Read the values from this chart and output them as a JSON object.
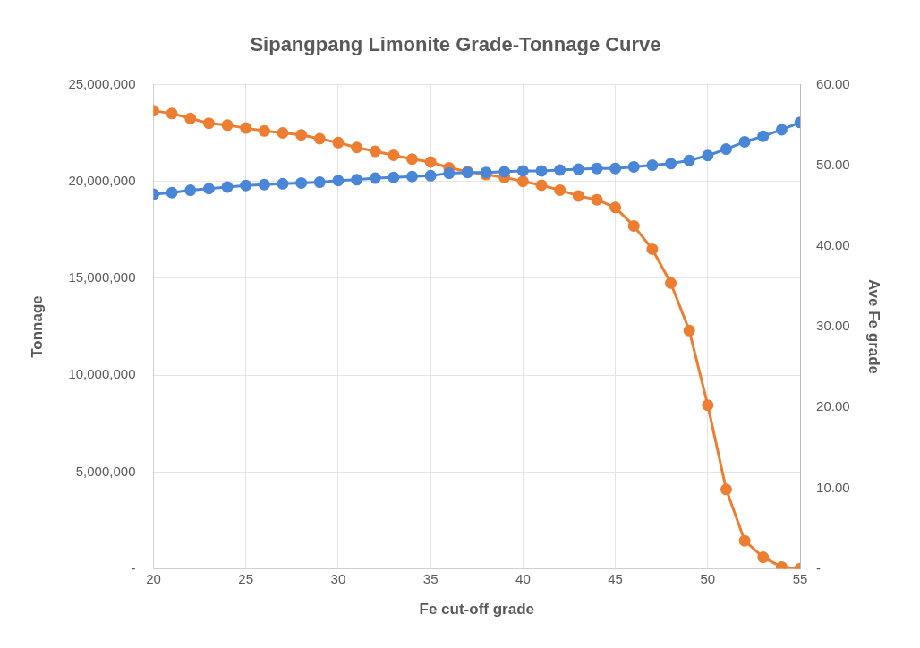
{
  "chart_data": {
    "type": "line",
    "title": "Sipangpang Limonite Grade-Tonnage Curve",
    "xlabel": "Fe cut-off grade",
    "ylabel": "Tonnage",
    "y2label": "Ave Fe grade",
    "x": [
      20,
      21,
      22,
      23,
      24,
      25,
      26,
      27,
      28,
      29,
      30,
      31,
      32,
      33,
      34,
      35,
      36,
      37,
      38,
      39,
      40,
      41,
      42,
      43,
      44,
      45,
      46,
      47,
      48,
      49,
      50,
      51,
      52,
      53,
      54,
      55
    ],
    "series": [
      {
        "color": "#ed7d31",
        "values": [
          23650000,
          23500000,
          23250000,
          23000000,
          22900000,
          22750000,
          22600000,
          22500000,
          22400000,
          22200000,
          22000000,
          21750000,
          21550000,
          21350000,
          21150000,
          21000000,
          20700000,
          20500000,
          20350000,
          20200000,
          20000000,
          19800000,
          19550000,
          19250000,
          19050000,
          18650000,
          17700000,
          16500000,
          14750000,
          12300000,
          8450000,
          4100000,
          1450000,
          600000,
          100000,
          20000
        ]
      },
      {
        "color": "#4a86d8",
        "axis": "y2",
        "values": [
          46.4,
          46.6,
          46.9,
          47.1,
          47.3,
          47.5,
          47.6,
          47.7,
          47.8,
          47.9,
          48.1,
          48.2,
          48.4,
          48.5,
          48.6,
          48.7,
          49.0,
          49.1,
          49.1,
          49.2,
          49.3,
          49.3,
          49.4,
          49.5,
          49.6,
          49.6,
          49.8,
          50.0,
          50.2,
          50.6,
          51.2,
          52.0,
          52.9,
          53.6,
          54.4,
          55.3
        ]
      }
    ],
    "xlim": [
      20,
      55
    ],
    "xticks": [
      20,
      25,
      30,
      35,
      40,
      45,
      50,
      55
    ],
    "ylim": [
      0,
      25000000
    ],
    "yticks": [
      {
        "value": 0,
        "label": "-"
      },
      {
        "value": 5000000,
        "label": "5,000,000"
      },
      {
        "value": 10000000,
        "label": "10,000,000"
      },
      {
        "value": 15000000,
        "label": "15,000,000"
      },
      {
        "value": 20000000,
        "label": "20,000,000"
      },
      {
        "value": 25000000,
        "label": "25,000,000"
      }
    ],
    "y2lim": [
      0,
      60
    ],
    "y2ticks": [
      {
        "value": 0,
        "label": "-"
      },
      {
        "value": 10,
        "label": "10.00"
      },
      {
        "value": 20,
        "label": "20.00"
      },
      {
        "value": 30,
        "label": "30.00"
      },
      {
        "value": 40,
        "label": "40.00"
      },
      {
        "value": 50,
        "label": "50.00"
      },
      {
        "value": 60,
        "label": "60.00"
      }
    ],
    "grid": true,
    "legend": false,
    "marker": "circle",
    "line_style": "solid"
  }
}
